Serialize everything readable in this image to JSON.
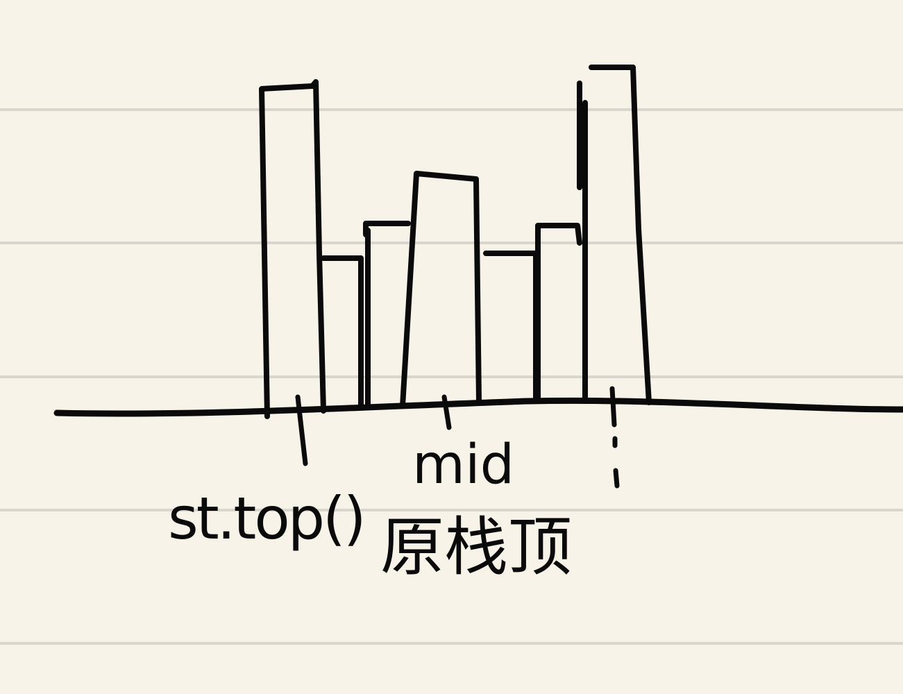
{
  "colors": {
    "paper": "#f7f3e8",
    "rule_line": "#d9d6cf",
    "ink": "#0a0a0a"
  },
  "labels": {
    "st_top": "st.top()",
    "mid": "mid",
    "orig_stack_top": "原栈顶"
  },
  "bars": [
    {
      "id": "bar-1",
      "height": 4.6
    },
    {
      "id": "bar-2",
      "height": 2.1
    },
    {
      "id": "bar-3",
      "height": 2.6
    },
    {
      "id": "bar-4",
      "height": 3.3
    },
    {
      "id": "bar-5",
      "height": 2.1
    },
    {
      "id": "bar-6",
      "height": 2.6
    },
    {
      "id": "bar-7",
      "height": 4.8
    }
  ],
  "markers": [
    "st-top-marker",
    "mid-marker",
    "current-marker"
  ]
}
